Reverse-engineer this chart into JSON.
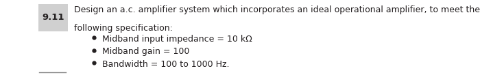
{
  "problem_number": "9.11",
  "main_text": "Design an a.c. amplifier system which incorporates an ideal operational amplifier, to meet the\nfollowing specification:",
  "bullet_points": [
    "Midband input impedance = 10 kΩ",
    "Midband gain = 100",
    "Bandwidth = 100 to 1000 Hz."
  ],
  "bg_color": "#ffffff",
  "text_color": "#231f20",
  "label_bg": "#d0d0d0",
  "font_size_main": 9.0,
  "font_size_label": 9.5,
  "bottom_line_color": "#888888"
}
